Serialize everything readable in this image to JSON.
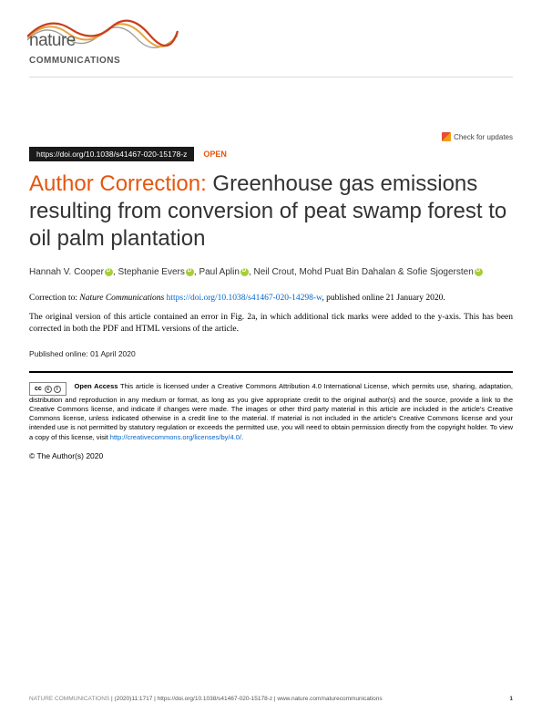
{
  "header": {
    "logo_top": "nature",
    "logo_bottom": "COMMUNICATIONS",
    "check_updates": "Check for updates"
  },
  "doi": {
    "url": "https://doi.org/10.1038/s41467-020-15178-z",
    "open": "OPEN"
  },
  "title": {
    "prefix": "Author Correction:",
    "main": " Greenhouse gas emissions resulting from conversion of peat swamp forest to oil palm plantation"
  },
  "authors": [
    {
      "name": "Hannah V. Cooper",
      "orcid": true
    },
    {
      "name": "Stephanie Evers",
      "orcid": true
    },
    {
      "name": "Paul Aplin",
      "orcid": true
    },
    {
      "name": "Neil Crout",
      "orcid": false
    },
    {
      "name": "Mohd Puat Bin Dahalan",
      "orcid": false
    },
    {
      "name": "Sofie Sjogersten",
      "orcid": true
    }
  ],
  "correction": {
    "prefix": "Correction to: ",
    "journal": "Nature Communications ",
    "link": "https://doi.org/10.1038/s41467-020-14298-w",
    "suffix": ", published online 21 January 2020."
  },
  "body": "The original version of this article contained an error in Fig. 2a, in which additional tick marks were added to the y-axis. This has been corrected in both the PDF and HTML versions of the article.",
  "pub_date": "Published online: 01 April 2020",
  "license": {
    "badge": "cc",
    "text_bold": "Open Access",
    "text": " This article is licensed under a Creative Commons Attribution 4.0 International License, which permits use, sharing, adaptation, distribution and reproduction in any medium or format, as long as you give appropriate credit to the original author(s) and the source, provide a link to the Creative Commons license, and indicate if changes were made. The images or other third party material in this article are included in the article's Creative Commons license, unless indicated otherwise in a credit line to the material. If material is not included in the article's Creative Commons license and your intended use is not permitted by statutory regulation or exceeds the permitted use, you will need to obtain permission directly from the copyright holder. To view a copy of this license, visit ",
    "link": "http://creativecommons.org/licenses/by/4.0/",
    "period": "."
  },
  "copyright": "© The Author(s) 2020",
  "footer": {
    "brand": "NATURE COMMUNICATIONS",
    "citation": " | (2020)11:1717 | https://doi.org/10.1038/s41467-020-15178-z | www.nature.com/naturecommunications",
    "page": "1"
  },
  "colors": {
    "accent": "#e6550d",
    "link": "#0066cc",
    "orcid": "#a6ce39",
    "wave_red": "#c73e1d",
    "wave_orange": "#e8a33d",
    "wave_gray": "#999"
  }
}
